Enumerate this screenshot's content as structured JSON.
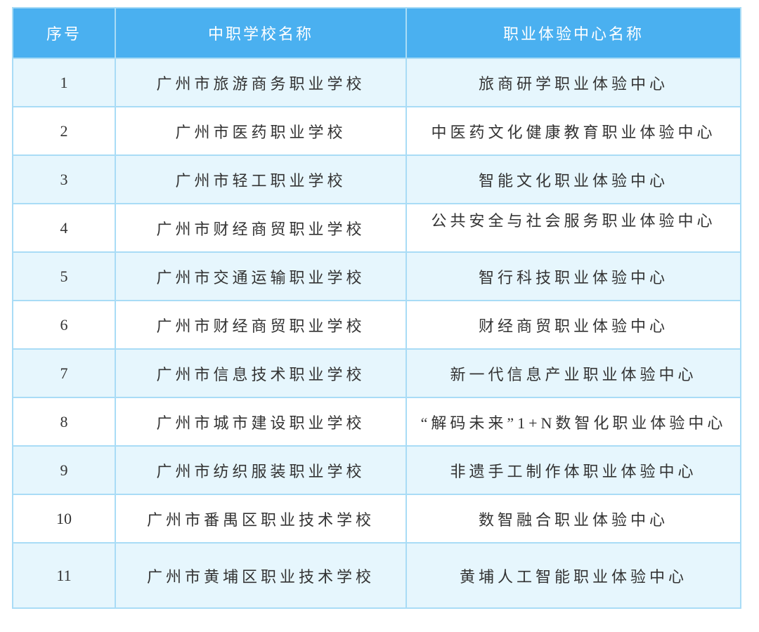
{
  "table": {
    "headers": [
      "序号",
      "中职学校名称",
      "职业体验中心名称"
    ],
    "rows": [
      [
        "1",
        "广州市旅游商务职业学校",
        "旅商研学职业体验中心"
      ],
      [
        "2",
        "广州市医药职业学校",
        "中医药文化健康教育职业体验中心"
      ],
      [
        "3",
        "广州市轻工职业学校",
        "智能文化职业体验中心"
      ],
      [
        "4",
        "广州市财经商贸职业学校",
        "公共安全与社会服务职业体验中心"
      ],
      [
        "5",
        "广州市交通运输职业学校",
        "智行科技职业体验中心"
      ],
      [
        "6",
        "广州市财经商贸职业学校",
        "财经商贸职业体验中心"
      ],
      [
        "7",
        "广州市信息技术职业学校",
        "新一代信息产业职业体验中心"
      ],
      [
        "8",
        "广州市城市建设职业学校",
        "“解码未来”1+N数智化职业体验中心"
      ],
      [
        "9",
        "广州市纺织服装职业学校",
        "非遗手工制作体职业体验中心"
      ],
      [
        "10",
        "广州市番禺区职业技术学校",
        "数智融合职业体验中心"
      ],
      [
        "11",
        "广州市黄埔区职业技术学校",
        "黄埔人工智能职业体验中心"
      ]
    ]
  },
  "colors": {
    "header_bg": "#4ab0f0",
    "odd_row_bg": "#e6f6fd",
    "even_row_bg": "#ffffff",
    "border": "#a9dcf6"
  }
}
